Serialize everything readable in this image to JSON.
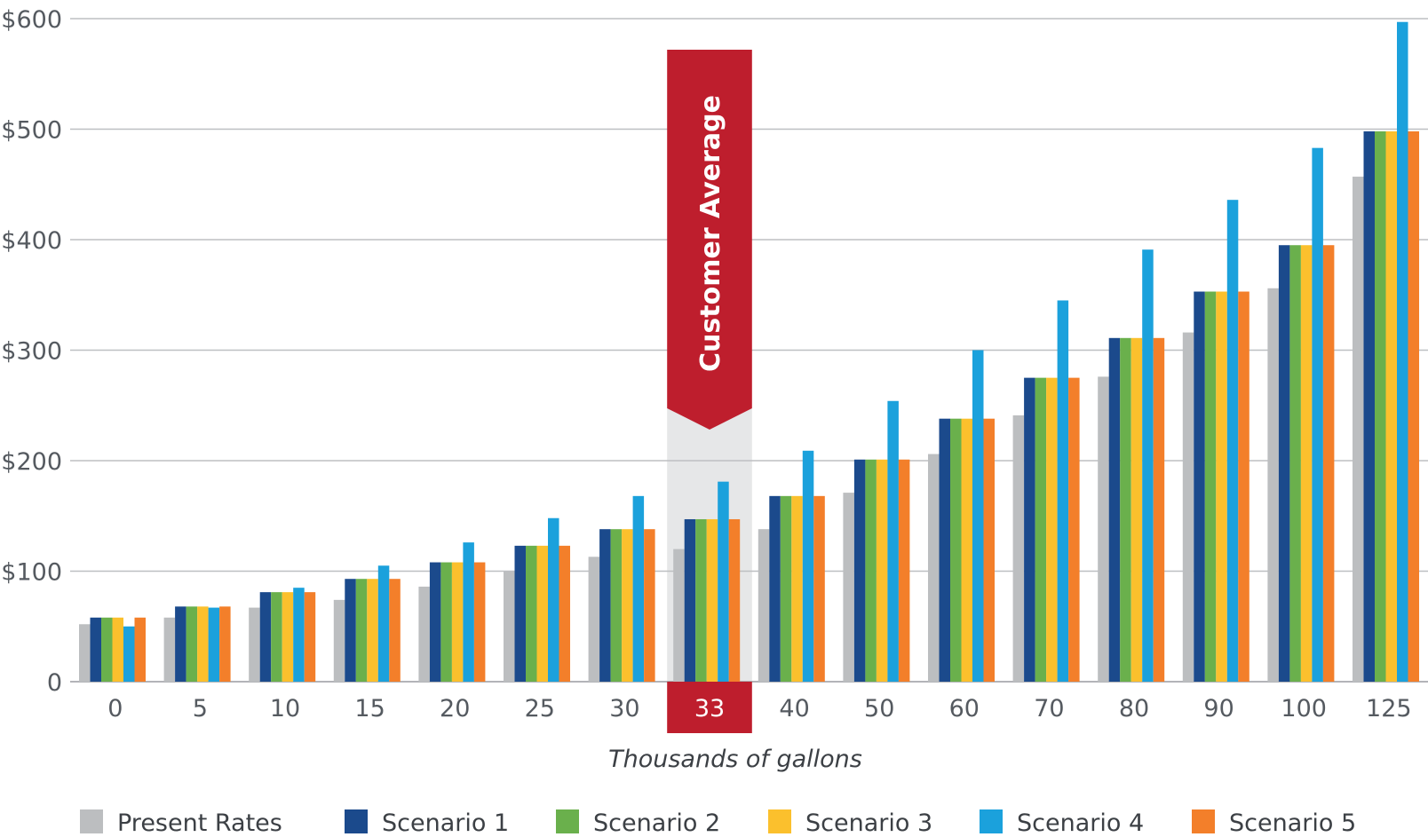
{
  "chart_data": {
    "type": "bar",
    "xlabel": "Thousands of gallons",
    "ylabel": "",
    "ylim": [
      0,
      600
    ],
    "yticks": [
      {
        "value": 0,
        "label": "0"
      },
      {
        "value": 100,
        "label": "$100"
      },
      {
        "value": 200,
        "label": "$200"
      },
      {
        "value": 300,
        "label": "$300"
      },
      {
        "value": 400,
        "label": "$400"
      },
      {
        "value": 500,
        "label": "$500"
      },
      {
        "value": 600,
        "label": "$600"
      }
    ],
    "categories": [
      "0",
      "5",
      "10",
      "15",
      "20",
      "25",
      "30",
      "33",
      "40",
      "50",
      "60",
      "70",
      "80",
      "90",
      "100",
      "125"
    ],
    "highlight": {
      "category": "33",
      "label": "Customer Average",
      "color": "#be1e2d",
      "band_color": "#e6e7e8"
    },
    "grid": "horizontal",
    "legend_position": "bottom",
    "series": [
      {
        "name": "Present Rates",
        "color": "#bcbec0",
        "values": [
          52,
          58,
          67,
          74,
          86,
          100,
          113,
          120,
          138,
          171,
          206,
          241,
          276,
          316,
          356,
          457
        ]
      },
      {
        "name": "Scenario 1",
        "color": "#1b4a8c",
        "values": [
          58,
          68,
          81,
          93,
          108,
          123,
          138,
          147,
          168,
          201,
          238,
          275,
          311,
          353,
          395,
          498
        ]
      },
      {
        "name": "Scenario 2",
        "color": "#6ab04c",
        "values": [
          58,
          68,
          81,
          93,
          108,
          123,
          138,
          147,
          168,
          201,
          238,
          275,
          311,
          353,
          395,
          498
        ]
      },
      {
        "name": "Scenario 3",
        "color": "#fbc02d",
        "values": [
          58,
          68,
          81,
          93,
          108,
          123,
          138,
          147,
          168,
          201,
          238,
          275,
          311,
          353,
          395,
          498
        ]
      },
      {
        "name": "Scenario 4",
        "color": "#1ba1dc",
        "values": [
          50,
          67,
          85,
          105,
          126,
          148,
          168,
          181,
          209,
          254,
          300,
          345,
          391,
          436,
          483,
          597
        ]
      },
      {
        "name": "Scenario 5",
        "color": "#f37f2a",
        "values": [
          58,
          68,
          81,
          93,
          108,
          123,
          138,
          147,
          168,
          201,
          238,
          275,
          311,
          353,
          395,
          498
        ]
      }
    ]
  }
}
